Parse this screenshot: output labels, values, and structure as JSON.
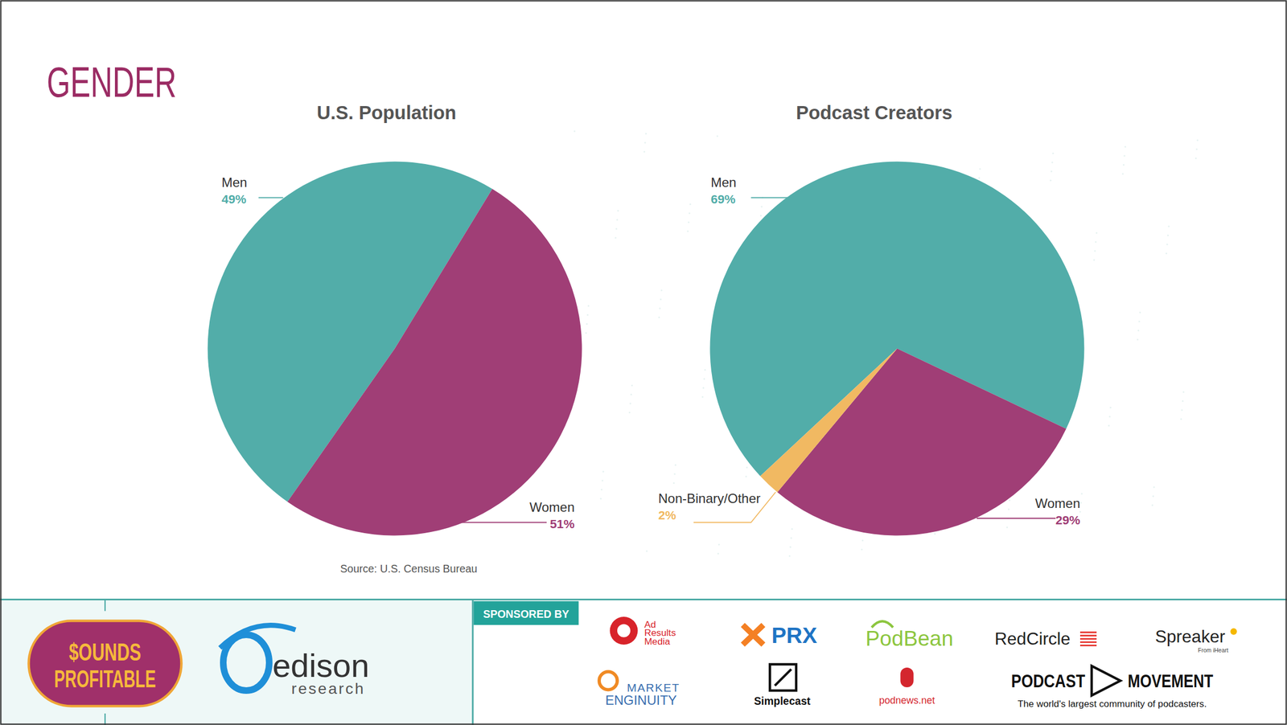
{
  "page": {
    "heading": "GENDER"
  },
  "chart_data": [
    {
      "type": "pie",
      "title": "U.S. Population",
      "categories": [
        "Men",
        "Women"
      ],
      "values": [
        49,
        51
      ],
      "value_labels": [
        "49%",
        "51%"
      ],
      "colors": [
        "#52ada9",
        "#a03e76"
      ],
      "data_labels": true,
      "source": "Source: U.S. Census Bureau"
    },
    {
      "type": "pie",
      "title": "Podcast Creators",
      "categories": [
        "Men",
        "Women",
        "Non-Binary/Other"
      ],
      "values": [
        69,
        29,
        2
      ],
      "value_labels": [
        "69%",
        "29%",
        "2%"
      ],
      "colors": [
        "#52ada9",
        "#a03e76",
        "#f1b962"
      ],
      "data_labels": true
    }
  ],
  "footer": {
    "sounds_profitable": [
      "$OUNDS",
      "PROFITABLE"
    ],
    "edison": [
      "edison",
      "research"
    ],
    "sponsored_by": "SPONSORED BY",
    "sponsors": [
      [
        "Ad",
        "Results",
        "Media"
      ],
      [
        "PRX"
      ],
      [
        "PodBean"
      ],
      [
        "RedCircle"
      ],
      [
        "Spreaker",
        "From iHeart"
      ],
      [
        "MARKET",
        "ENGINUITY"
      ],
      [
        "Simplecast"
      ],
      [
        "podnews.net"
      ],
      [
        "PODCAST",
        "MOVEMENT",
        "The world's largest community of podcasters."
      ]
    ]
  }
}
